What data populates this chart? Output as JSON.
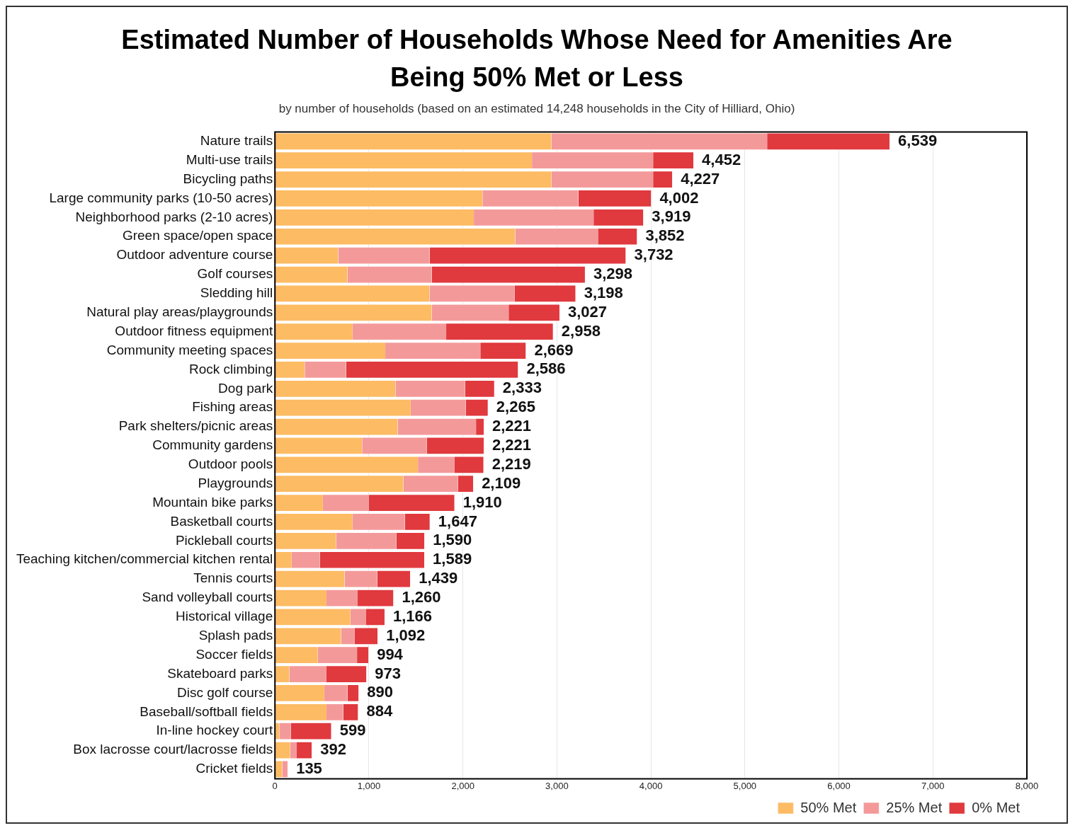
{
  "chart_data": {
    "type": "bar",
    "orientation": "horizontal",
    "stacked": true,
    "title": "Estimated Number of Households Whose Need for Amenities Are Being 50% Met or Less",
    "subtitle": "by number of households (based on an estimated 14,248 households in the City of Hilliard, Ohio)",
    "categories": [
      "Nature trails",
      "Multi-use trails",
      "Bicycling paths",
      "Large community parks (10-50 acres)",
      "Neighborhood parks (2-10 acres)",
      "Green space/open space",
      "Outdoor adventure course",
      "Golf courses",
      "Sledding hill",
      "Natural play areas/playgrounds",
      "Outdoor fitness equipment",
      "Community meeting spaces",
      "Rock climbing",
      "Dog park",
      "Fishing areas",
      "Park shelters/picnic areas",
      "Community gardens",
      "Outdoor pools",
      "Playgrounds",
      "Mountain bike parks",
      "Basketball courts",
      "Pickleball courts",
      "Teaching kitchen/commercial kitchen rental",
      "Tennis courts",
      "Sand volleyball courts",
      "Historical village",
      "Splash pads",
      "Soccer fields",
      "Skateboard parks",
      "Disc golf course",
      "Baseball/softball fields",
      "In-line hockey court",
      "Box lacrosse court/lacrosse fields",
      "Cricket fields"
    ],
    "series": [
      {
        "name": "50% Met",
        "color": "#fdbb63",
        "values": [
          2942,
          2734,
          2942,
          2208,
          2116,
          2556,
          672,
          772,
          1645,
          1668,
          826,
          1174,
          317,
          1282,
          1444,
          1305,
          927,
          1521,
          1367,
          510,
          826,
          649,
          178,
          741,
          548,
          803,
          703,
          456,
          154,
          525,
          548,
          46,
          162,
          77
        ]
      },
      {
        "name": "25% Met",
        "color": "#f4999a",
        "values": [
          2294,
          1289,
          1081,
          1020,
          1274,
          880,
          973,
          896,
          903,
          818,
          996,
          1011,
          440,
          741,
          587,
          834,
          687,
          386,
          579,
          486,
          556,
          641,
          301,
          348,
          332,
          162,
          146,
          417,
          394,
          247,
          178,
          124,
          70,
          58
        ]
      },
      {
        "name": "0% Met",
        "color": "#e0393e",
        "values": [
          1303,
          429,
          204,
          774,
          529,
          416,
          2087,
          1630,
          650,
          541,
          1136,
          484,
          1829,
          310,
          234,
          82,
          607,
          312,
          163,
          914,
          265,
          300,
          1110,
          350,
          380,
          201,
          243,
          121,
          425,
          118,
          158,
          429,
          160,
          0
        ]
      }
    ],
    "totals": [
      "6,539",
      "4,452",
      "4,227",
      "4,002",
      "3,919",
      "3,852",
      "3,732",
      "3,298",
      "3,198",
      "3,027",
      "2,958",
      "2,669",
      "2,586",
      "2,333",
      "2,265",
      "2,221",
      "2,221",
      "2,219",
      "2,109",
      "1,910",
      "1,647",
      "1,590",
      "1,589",
      "1,439",
      "1,260",
      "1,166",
      "1,092",
      "994",
      "973",
      "890",
      "884",
      "599",
      "392",
      "135"
    ],
    "xlim": [
      0,
      8000
    ],
    "xticks": [
      0,
      {
        "value": 1000,
        "label": "1,000"
      },
      {
        "value": 2000,
        "label": "2,000"
      },
      {
        "value": 3000,
        "label": "3,000"
      },
      {
        "value": 4000,
        "label": "4,000"
      },
      {
        "value": 5000,
        "label": "5,000"
      },
      {
        "value": 6000,
        "label": "6,000"
      },
      {
        "value": 7000,
        "label": "7,000"
      },
      {
        "value": 8000,
        "label": "8,000"
      }
    ],
    "grid": "x",
    "legend": "bottom right"
  }
}
